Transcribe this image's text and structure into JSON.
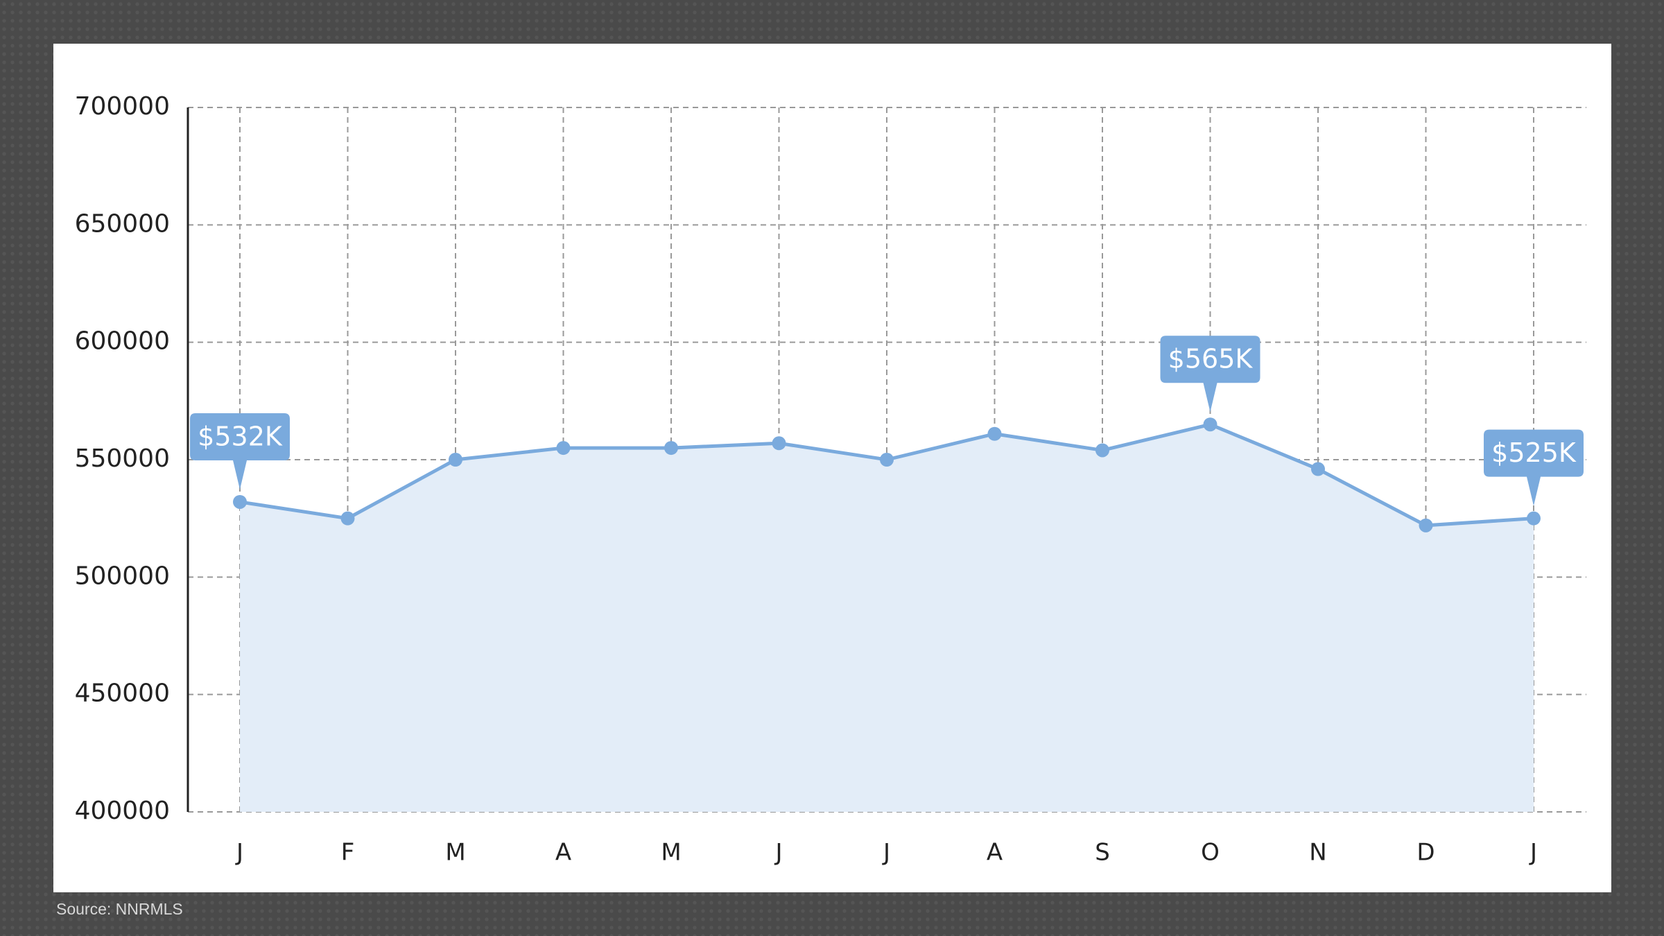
{
  "chart_data": {
    "type": "area",
    "categories": [
      "J",
      "F",
      "M",
      "A",
      "M",
      "J",
      "J",
      "A",
      "S",
      "O",
      "N",
      "D",
      "J"
    ],
    "values": [
      532000,
      525000,
      550000,
      555000,
      555000,
      557000,
      550000,
      561000,
      554000,
      565000,
      546000,
      522000,
      525000
    ],
    "value_labels": [
      "$532K",
      null,
      null,
      null,
      null,
      null,
      null,
      null,
      null,
      "$565K",
      null,
      null,
      "$525K"
    ],
    "color": "#7aaadd",
    "fill_color": "#e3edf8",
    "ylim": [
      400000,
      700000
    ],
    "yticks": [
      400000,
      450000,
      500000,
      550000,
      600000,
      650000,
      700000
    ],
    "grid": true,
    "source": "Source: NNRMLS"
  }
}
